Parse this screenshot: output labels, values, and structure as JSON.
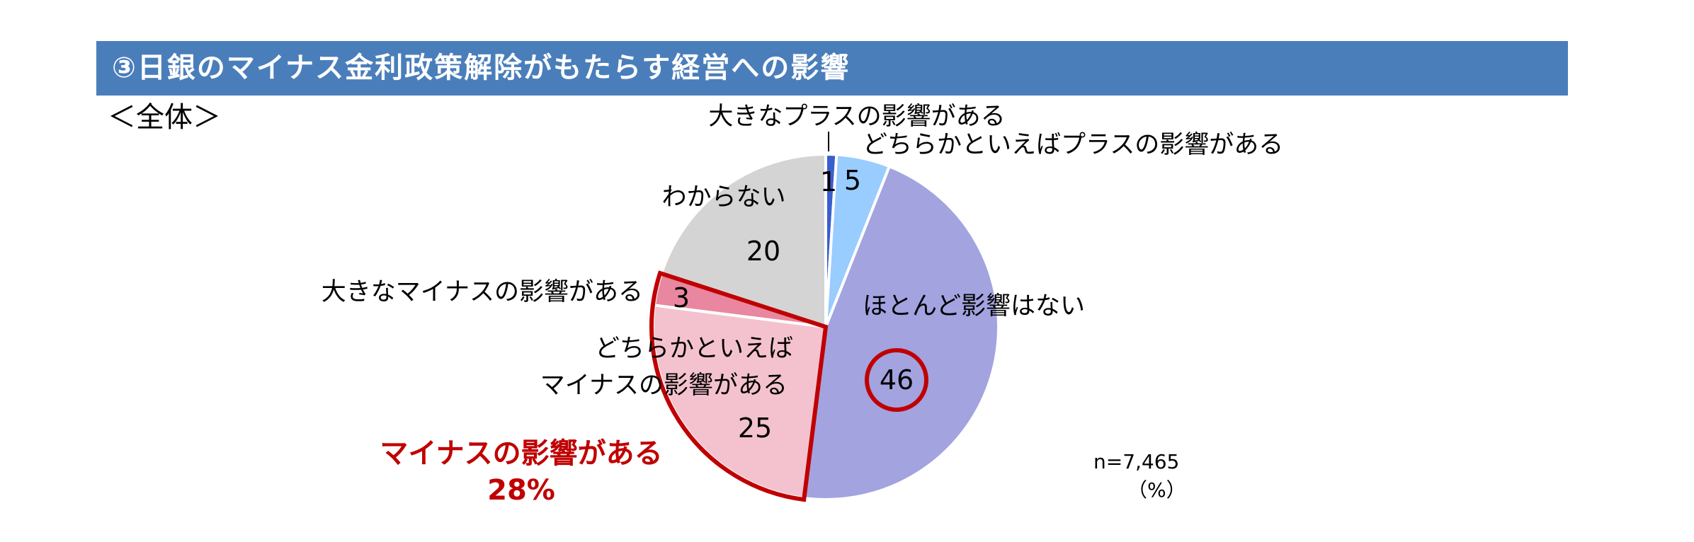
{
  "header": {
    "title": "③日銀のマイナス金利政策解除がもたらす経営への影響",
    "background": "#4a7ebb"
  },
  "subtitle": "＜全体＞",
  "chart_data": {
    "type": "pie",
    "categories": [
      "大きなプラスの影響がある",
      "どちらかといえばプラスの影響がある",
      "ほとんど影響はない",
      "どちらかといえば\nマイナスの影響がある",
      "大きなマイナスの影響がある",
      "わからない"
    ],
    "values": [
      1,
      5,
      46,
      25,
      3,
      20
    ],
    "colors": [
      "#3a5fcd",
      "#99ccff",
      "#a3a3e0",
      "#f4c2cf",
      "#e8879f",
      "#d4d4d4"
    ],
    "start_angle_deg": 0,
    "direction": "clockwise",
    "highlight": {
      "label": "マイナスの影響がある",
      "value_label": "28%",
      "components": [
        "どちらかといえば\nマイナスの影響がある",
        "大きなマイナスの影響がある"
      ],
      "color": "#c00000"
    },
    "circled_value": "46",
    "sample_size": "n=7,465",
    "unit": "（%）"
  }
}
